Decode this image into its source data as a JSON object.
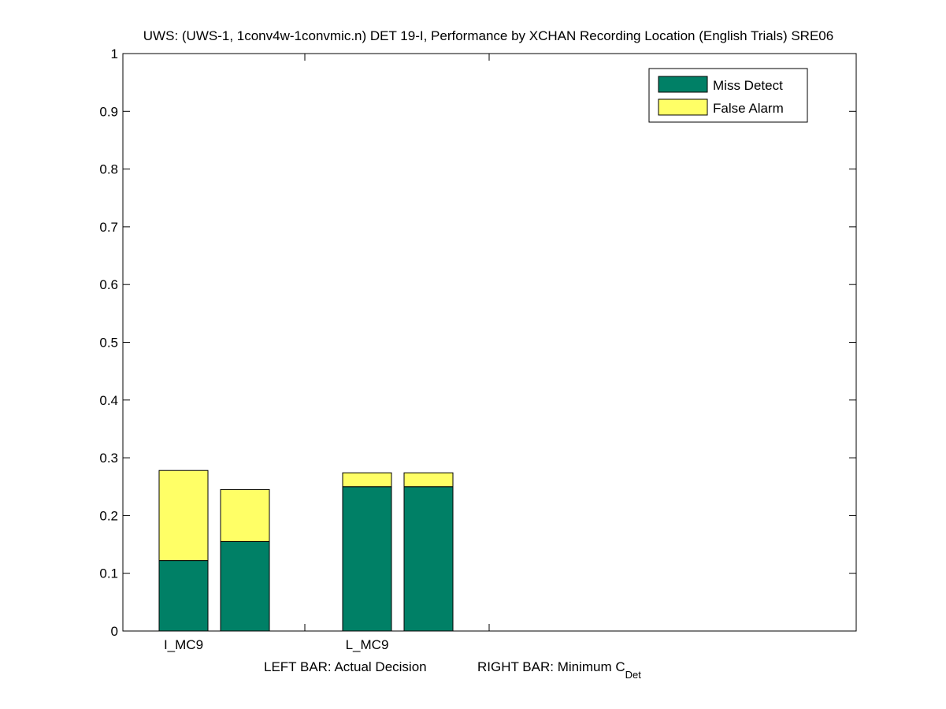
{
  "chart_data": {
    "type": "bar",
    "stacked": true,
    "title": "UWS: (UWS-1, 1conv4w-1convmic.n) DET 19-I,  Performance by XCHAN Recording Location (English Trials) SRE06",
    "xlabel_left": "LEFT BAR: Actual Decision",
    "xlabel_right": "RIGHT BAR: Minimum C",
    "xlabel_right_subscript": "Det",
    "ylabel": "",
    "ylim": [
      0,
      1
    ],
    "yticks": [
      0,
      0.1,
      0.2,
      0.3,
      0.4,
      0.5,
      0.6,
      0.7,
      0.8,
      0.9,
      1
    ],
    "ytick_labels": [
      "0",
      "0.1",
      "0.2",
      "0.3",
      "0.4",
      "0.5",
      "0.6",
      "0.7",
      "0.8",
      "0.9",
      "1"
    ],
    "categories": [
      "I_MC9",
      "L_MC9"
    ],
    "bars_per_category": [
      "Actual Decision",
      "Minimum C_Det"
    ],
    "series": [
      {
        "name": "Miss Detect",
        "color": "#008066",
        "values": [
          [
            0.122,
            0.155
          ],
          [
            0.25,
            0.25
          ]
        ]
      },
      {
        "name": "False Alarm",
        "color": "#ffff66",
        "values": [
          [
            0.156,
            0.09
          ],
          [
            0.024,
            0.024
          ]
        ]
      }
    ],
    "grid": false,
    "legend": "top-right"
  }
}
